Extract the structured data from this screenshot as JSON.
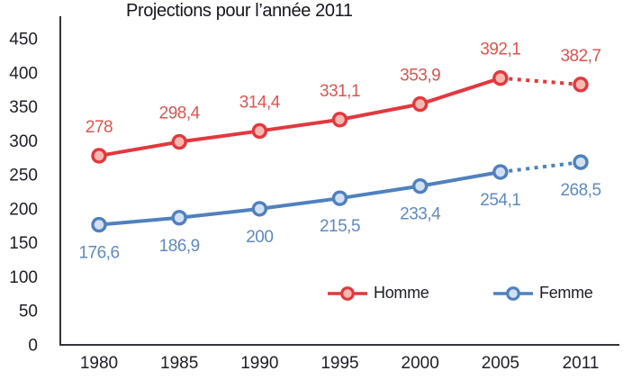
{
  "chart_data": {
    "type": "line",
    "title": "Projections pour l’année 2011",
    "categories": [
      "1980",
      "1985",
      "1990",
      "1995",
      "2000",
      "2005",
      "2011"
    ],
    "series": [
      {
        "name": "Homme",
        "values": [
          278,
          298.4,
          314.4,
          331.1,
          353.9,
          392.1,
          382.7
        ],
        "labels": [
          "278",
          "298,4",
          "314,4",
          "331,1",
          "353,9",
          "392,1",
          "382,7"
        ],
        "color": "#e2383e",
        "marker_fill": "#f5b9b1",
        "label_color": "#e0534e",
        "dashed_from_index": 5,
        "label_position": "above"
      },
      {
        "name": "Femme",
        "values": [
          176.6,
          186.9,
          200,
          215.5,
          233.4,
          254.1,
          268.5
        ],
        "labels": [
          "176,6",
          "186,9",
          "200",
          "215,5",
          "233,4",
          "254,1",
          "268,5"
        ],
        "color": "#4f81bd",
        "marker_fill": "#d3e0f2",
        "label_color": "#5f8ac0",
        "dashed_from_index": 5,
        "label_position": "below"
      }
    ],
    "y_ticks": [
      0,
      50,
      100,
      150,
      200,
      250,
      300,
      350,
      400,
      450
    ],
    "ylim": [
      0,
      450
    ],
    "grid": false,
    "legend_position": "bottom-inside",
    "axis_color": "#33333a",
    "tick_label_color": "#1e1e26"
  }
}
